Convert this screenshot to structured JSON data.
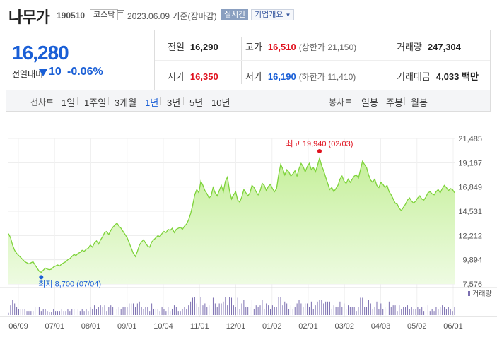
{
  "header": {
    "title": "나무가",
    "code": "190510",
    "market": "코스닥",
    "date": "2023.06.09 기준(장마감)",
    "realtime": "실시간",
    "company_info": "기업개요"
  },
  "price": {
    "current": "16,280",
    "change_label": "전일대비",
    "change": "10",
    "change_pct": "-0.06%",
    "direction": "down"
  },
  "stats": {
    "prev_close": {
      "label": "전일",
      "value": "16,290"
    },
    "high": {
      "label": "고가",
      "value": "16,510",
      "sub_label": "(상한가",
      "sub_value": "21,150)"
    },
    "volume": {
      "label": "거래량",
      "value": "247,304"
    },
    "open": {
      "label": "시가",
      "value": "16,350"
    },
    "low": {
      "label": "저가",
      "value": "16,190",
      "sub_label": "(하한가",
      "sub_value": "11,410)"
    },
    "amount": {
      "label": "거래대금",
      "value": "4,033",
      "unit": "백만"
    }
  },
  "period_bar": {
    "line_label": "선차트",
    "line_periods": [
      "1일",
      "1주일",
      "3개월",
      "1년",
      "3년",
      "5년",
      "10년"
    ],
    "active_period": "1년",
    "candle_label": "봉차트",
    "candle_periods": [
      "일봉",
      "주봉",
      "월봉"
    ]
  },
  "chart_data": {
    "type": "area",
    "y_ticks": [
      "21,485",
      "19,167",
      "16,849",
      "14,531",
      "12,212",
      "9,894",
      "7,576"
    ],
    "ylim": [
      7576,
      21485
    ],
    "x_ticks": [
      "06/09",
      "07/01",
      "08/01",
      "09/01",
      "10/04",
      "11/01",
      "12/01",
      "01/02",
      "02/01",
      "03/02",
      "04/03",
      "05/02",
      "06/01"
    ],
    "high_annotation": "최고 19,940 (02/03)",
    "low_annotation": "최저 8,700 (07/04)",
    "volume_legend": "거래량",
    "colors": {
      "fill": "#c5ef9a",
      "line": "#7ed33a",
      "volume": "#7b6fb0",
      "high": "#e0121f",
      "low": "#1a5fd6"
    },
    "values": [
      12400,
      12000,
      11300,
      10800,
      10500,
      10300,
      10100,
      9900,
      9700,
      9600,
      9500,
      9600,
      9700,
      9400,
      9100,
      8800,
      8700,
      8900,
      9100,
      9000,
      8950,
      9000,
      9200,
      9300,
      9400,
      9300,
      9500,
      9600,
      9700,
      9900,
      10000,
      10200,
      10400,
      10300,
      10500,
      10600,
      10800,
      10700,
      10900,
      11000,
      11300,
      11100,
      11500,
      11700,
      11400,
      11800,
      12100,
      12500,
      12600,
      12300,
      12700,
      13000,
      13200,
      13400,
      13100,
      12900,
      12600,
      12300,
      12000,
      11500,
      11000,
      10500,
      10200,
      10700,
      11300,
      11600,
      11800,
      11500,
      11200,
      11100,
      11600,
      11800,
      12000,
      12200,
      12100,
      12400,
      12600,
      12500,
      12800,
      12700,
      12900,
      12500,
      12800,
      12900,
      13000,
      12800,
      13100,
      13300,
      13700,
      14300,
      15100,
      16100,
      16600,
      16300,
      17400,
      17000,
      16500,
      16200,
      15800,
      16000,
      16800,
      16300,
      16000,
      16500,
      17000,
      16400,
      17400,
      17800,
      16500,
      15700,
      16100,
      16400,
      15600,
      15400,
      15900,
      16600,
      16300,
      16000,
      16300,
      17000,
      16800,
      16400,
      16100,
      16500,
      17200,
      17000,
      16500,
      16900,
      17100,
      16700,
      16400,
      16700,
      18000,
      19000,
      18600,
      18000,
      18500,
      18300,
      17900,
      18100,
      18400,
      17900,
      18600,
      19100,
      18800,
      18300,
      18800,
      19100,
      18500,
      18700,
      18300,
      18900,
      19600,
      18900,
      18400,
      17800,
      17200,
      16600,
      16800,
      16400,
      16700,
      17000,
      17600,
      17900,
      17400,
      17200,
      17600,
      17300,
      17600,
      17900,
      18000,
      17700,
      18500,
      19300,
      19000,
      18700,
      18000,
      17500,
      17300,
      17600,
      17000,
      16800,
      17300,
      17100,
      16800,
      17000,
      16400,
      16100,
      15700,
      15300,
      15200,
      14800,
      14600,
      14900,
      15200,
      15600,
      15800,
      15500,
      15300,
      15500,
      15800,
      16000,
      15700,
      15600,
      15900,
      16300,
      16400,
      16200,
      16100,
      16400,
      16600,
      16300,
      16700,
      17000,
      16800,
      16500,
      16700,
      16600,
      16300
    ]
  }
}
